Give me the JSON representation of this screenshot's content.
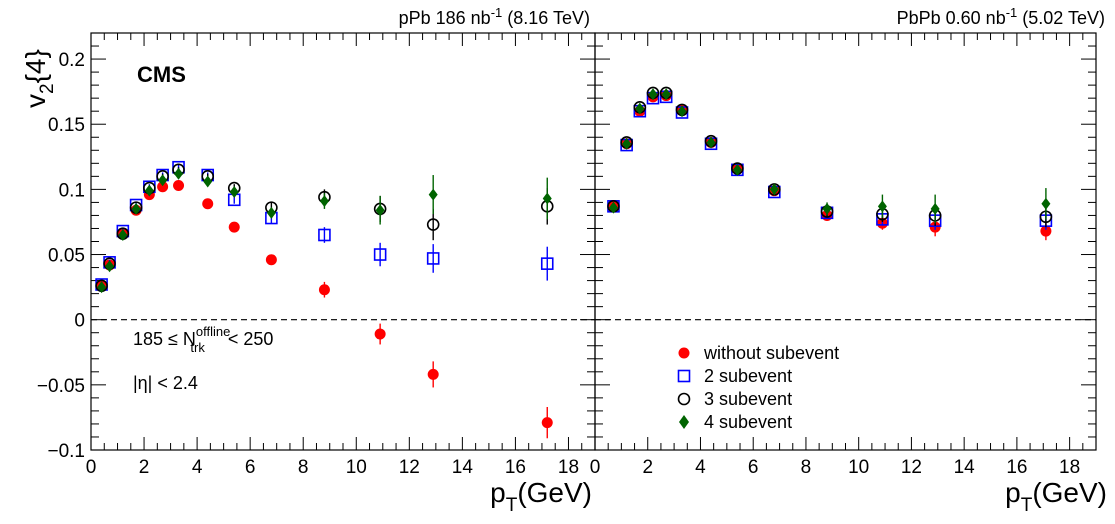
{
  "figure": {
    "ylabel_main": "v",
    "ylabel_sub": "2",
    "ylabel_suffix": "{4}",
    "cms_label": "CMS"
  },
  "chart_data": [
    {
      "type": "scatter",
      "panel": "left",
      "header": {
        "system": "pPb 186 nb",
        "exp": "-1",
        "energy": "(8.16 TeV)"
      },
      "xlabel": {
        "main": "p",
        "sub": "T",
        "suffix": "(GeV)"
      },
      "xlim": [
        0,
        19
      ],
      "ylim": [
        -0.1,
        0.22
      ],
      "x_ticks": [
        0,
        2,
        4,
        6,
        8,
        10,
        12,
        14,
        16,
        18
      ],
      "y_ticks": [
        -0.1,
        -0.05,
        0,
        0.05,
        0.1,
        0.15,
        0.2
      ],
      "y_tick_labels": [
        "−0.1",
        "−0.05",
        "0",
        "0.05",
        "0.1",
        "0.15",
        "0.2"
      ],
      "reference_line": {
        "y": 0,
        "style": "dashed"
      },
      "annotations": {
        "ntrk_prefix": "185 ≤ N",
        "ntrk_sup": "offline",
        "ntrk_sub": "trk",
        "ntrk_suffix": " < 250",
        "eta": "|η| < 2.4"
      },
      "series": [
        {
          "name": "without subevent",
          "marker": "filled-circle",
          "color": "#ff0000",
          "x": [
            0.4,
            0.7,
            1.2,
            1.7,
            2.2,
            2.7,
            3.3,
            4.4,
            5.4,
            6.8,
            8.8,
            10.9,
            12.9,
            17.2
          ],
          "y": [
            0.026,
            0.042,
            0.066,
            0.084,
            0.096,
            0.102,
            0.103,
            0.089,
            0.071,
            0.046,
            0.023,
            -0.011,
            -0.042,
            -0.079
          ],
          "err": [
            0.002,
            0.002,
            0.002,
            0.002,
            0.002,
            0.002,
            0.002,
            0.002,
            0.002,
            0.003,
            0.006,
            0.008,
            0.01,
            0.012
          ]
        },
        {
          "name": "2 subevent",
          "marker": "open-square",
          "color": "#0000ff",
          "x": [
            0.4,
            0.7,
            1.2,
            1.7,
            2.2,
            2.7,
            3.3,
            4.4,
            5.4,
            6.8,
            8.8,
            10.9,
            12.9,
            17.2
          ],
          "y": [
            0.027,
            0.044,
            0.068,
            0.088,
            0.102,
            0.111,
            0.117,
            0.111,
            0.092,
            0.078,
            0.065,
            0.05,
            0.047,
            0.043
          ],
          "err": [
            0.002,
            0.002,
            0.002,
            0.002,
            0.002,
            0.002,
            0.002,
            0.002,
            0.003,
            0.004,
            0.006,
            0.009,
            0.011,
            0.013
          ]
        },
        {
          "name": "3 subevent",
          "marker": "open-circle",
          "color": "#000000",
          "x": [
            0.4,
            0.7,
            1.2,
            1.7,
            2.2,
            2.7,
            3.3,
            4.4,
            5.4,
            6.8,
            8.8,
            10.9,
            12.9,
            17.2
          ],
          "y": [
            0.026,
            0.043,
            0.066,
            0.086,
            0.101,
            0.11,
            0.115,
            0.11,
            0.101,
            0.086,
            0.094,
            0.085,
            0.073,
            0.087
          ],
          "err": [
            0.002,
            0.002,
            0.002,
            0.002,
            0.002,
            0.002,
            0.002,
            0.002,
            0.003,
            0.004,
            0.006,
            0.01,
            0.012,
            0.014
          ]
        },
        {
          "name": "4 subevent",
          "marker": "filled-diamond",
          "color": "#006400",
          "x": [
            0.4,
            0.7,
            1.2,
            1.7,
            2.2,
            2.7,
            3.3,
            4.4,
            5.4,
            6.8,
            8.8,
            10.9,
            12.9,
            17.2
          ],
          "y": [
            0.025,
            0.041,
            0.065,
            0.085,
            0.099,
            0.107,
            0.112,
            0.106,
            0.098,
            0.082,
            0.091,
            0.084,
            0.096,
            0.093
          ],
          "err": [
            0.002,
            0.002,
            0.002,
            0.002,
            0.002,
            0.002,
            0.002,
            0.002,
            0.003,
            0.004,
            0.006,
            0.011,
            0.015,
            0.016
          ]
        }
      ]
    },
    {
      "type": "scatter",
      "panel": "right",
      "header": {
        "system": "PbPb 0.60 nb",
        "exp": "-1",
        "energy": "(5.02 TeV)"
      },
      "xlabel": {
        "main": "p",
        "sub": "T",
        "suffix": "(GeV)"
      },
      "xlim": [
        0,
        19
      ],
      "ylim": [
        -0.1,
        0.22
      ],
      "x_ticks": [
        0,
        2,
        4,
        6,
        8,
        10,
        12,
        14,
        16,
        18
      ],
      "reference_line": {
        "y": 0,
        "style": "dashed"
      },
      "legend": {
        "position": "bottom-left",
        "entries": [
          "without subevent",
          "2 subevent",
          "3 subevent",
          "4 subevent"
        ]
      },
      "series": [
        {
          "name": "without subevent",
          "marker": "filled-circle",
          "color": "#ff0000",
          "x": [
            0.7,
            1.2,
            1.7,
            2.2,
            2.7,
            3.3,
            4.4,
            5.4,
            6.8,
            8.8,
            10.9,
            12.9,
            17.1
          ],
          "y": [
            0.087,
            0.135,
            0.16,
            0.171,
            0.172,
            0.161,
            0.136,
            0.116,
            0.099,
            0.08,
            0.074,
            0.071,
            0.068
          ],
          "err": [
            0.001,
            0.001,
            0.001,
            0.001,
            0.001,
            0.001,
            0.001,
            0.002,
            0.002,
            0.003,
            0.005,
            0.007,
            0.007
          ]
        },
        {
          "name": "2 subevent",
          "marker": "open-square",
          "color": "#0000ff",
          "x": [
            0.7,
            1.2,
            1.7,
            2.2,
            2.7,
            3.3,
            4.4,
            5.4,
            6.8,
            8.8,
            10.9,
            12.9,
            17.1
          ],
          "y": [
            0.087,
            0.134,
            0.16,
            0.17,
            0.171,
            0.159,
            0.135,
            0.115,
            0.098,
            0.082,
            0.077,
            0.076,
            0.076
          ],
          "err": [
            0.001,
            0.001,
            0.001,
            0.001,
            0.001,
            0.001,
            0.001,
            0.002,
            0.002,
            0.003,
            0.005,
            0.007,
            0.007
          ]
        },
        {
          "name": "3 subevent",
          "marker": "open-circle",
          "color": "#000000",
          "x": [
            0.7,
            1.2,
            1.7,
            2.2,
            2.7,
            3.3,
            4.4,
            5.4,
            6.8,
            8.8,
            10.9,
            12.9,
            17.1
          ],
          "y": [
            0.087,
            0.136,
            0.163,
            0.174,
            0.174,
            0.161,
            0.137,
            0.116,
            0.1,
            0.083,
            0.081,
            0.08,
            0.079
          ],
          "err": [
            0.001,
            0.001,
            0.001,
            0.001,
            0.001,
            0.001,
            0.001,
            0.002,
            0.002,
            0.004,
            0.006,
            0.008,
            0.008
          ]
        },
        {
          "name": "4 subevent",
          "marker": "filled-diamond",
          "color": "#006400",
          "x": [
            0.7,
            1.2,
            1.7,
            2.2,
            2.7,
            3.3,
            4.4,
            5.4,
            6.8,
            8.8,
            10.9,
            12.9,
            17.1
          ],
          "y": [
            0.086,
            0.135,
            0.162,
            0.173,
            0.173,
            0.16,
            0.136,
            0.115,
            0.1,
            0.085,
            0.087,
            0.085,
            0.089
          ],
          "err": [
            0.001,
            0.001,
            0.001,
            0.001,
            0.001,
            0.001,
            0.001,
            0.002,
            0.002,
            0.005,
            0.009,
            0.011,
            0.012
          ]
        }
      ]
    }
  ]
}
